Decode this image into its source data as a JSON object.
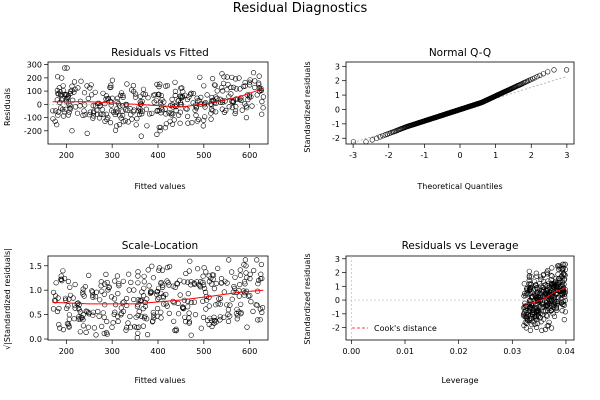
{
  "figure_title": "Residual Diagnostics",
  "chart_data": [
    {
      "type": "scatter",
      "title": "Residuals vs Fitted",
      "xlabel": "Fitted values",
      "ylabel": "Residuals",
      "xlim": [
        160,
        640
      ],
      "ylim": [
        -300,
        320
      ],
      "xticks": [
        200,
        300,
        400,
        500,
        600
      ],
      "yticks": [
        -200,
        -100,
        0,
        100,
        200,
        300
      ],
      "reference_line": 0,
      "smoother": {
        "x": [
          170,
          250,
          350,
          450,
          520,
          580,
          630
        ],
        "y": [
          20,
          20,
          0,
          -20,
          10,
          60,
          120
        ]
      },
      "n_points": 360,
      "seed": 11
    },
    {
      "type": "scatter",
      "title": "Normal Q-Q",
      "xlabel": "Theoretical Quantiles",
      "ylabel": "Standardized residuals",
      "xlim": [
        -3.2,
        3.2
      ],
      "ylim": [
        -2.4,
        3.3
      ],
      "xticks": [
        -3,
        -2,
        -1,
        0,
        1,
        2,
        3
      ],
      "yticks": [
        -2,
        -1,
        0,
        1,
        2,
        3
      ],
      "reference_line": {
        "x": [
          -3,
          3
        ],
        "y": [
          -2.3,
          2.3
        ]
      },
      "n_points": 360,
      "seed": 7
    },
    {
      "type": "scatter",
      "title": "Scale-Location",
      "xlabel": "Fitted values",
      "ylabel": "√|Standardized residuals|",
      "xlim": [
        160,
        640
      ],
      "ylim": [
        -0.02,
        1.7
      ],
      "xticks": [
        200,
        300,
        400,
        500,
        600
      ],
      "yticks": [
        0.0,
        0.5,
        1.0,
        1.5
      ],
      "smoother": {
        "x": [
          170,
          250,
          350,
          450,
          520,
          580,
          630
        ],
        "y": [
          0.75,
          0.72,
          0.72,
          0.8,
          0.88,
          0.96,
          1.0
        ]
      },
      "n_points": 360,
      "seed": 23
    },
    {
      "type": "scatter",
      "title": "Residuals vs Leverage",
      "xlabel": "Leverage",
      "ylabel": "Standardized residuals",
      "xlim": [
        -0.001,
        0.0415
      ],
      "ylim": [
        -2.9,
        3.2
      ],
      "xticks": [
        0.0,
        0.01,
        0.02,
        0.03,
        0.04
      ],
      "yticks": [
        -2,
        -1,
        0,
        1,
        2,
        3
      ],
      "reference_line": 0,
      "smoother": {
        "x": [
          0.032,
          0.034,
          0.036,
          0.038,
          0.04
        ],
        "y": [
          -0.3,
          -0.2,
          0.1,
          0.6,
          0.9
        ]
      },
      "legend": {
        "label": "Cook's distance",
        "placement": "bottom-left"
      },
      "leverage_columns": [
        0.0325,
        0.0335,
        0.0345,
        0.0355,
        0.0365,
        0.0375,
        0.0385,
        0.0395
      ],
      "n_points": 360,
      "seed": 31
    }
  ]
}
